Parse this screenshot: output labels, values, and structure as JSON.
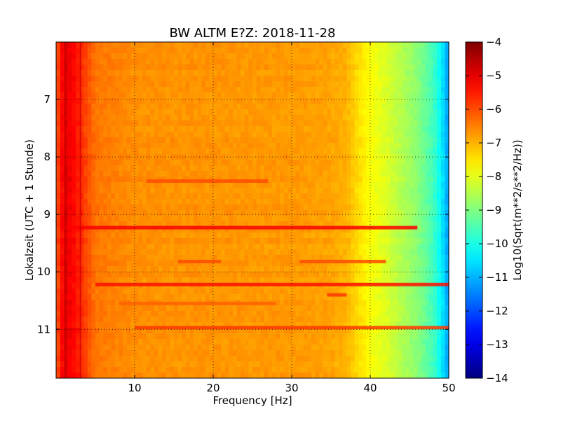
{
  "chart_data": {
    "type": "heatmap",
    "title": "BW ALTM E?Z: 2018-11-28",
    "xlabel": "Frequency [Hz]",
    "ylabel": "Lokalzeit (UTC + 1 Stunde)",
    "xlim": [
      0,
      50
    ],
    "ylim": [
      11.85,
      6.0
    ],
    "y_axis_inverted": true,
    "x_ticks": [
      10,
      20,
      30,
      40,
      50
    ],
    "y_ticks": [
      7,
      8,
      9,
      10,
      11
    ],
    "grid": true,
    "colorbar": {
      "label": "Log10(Sqrt(m**2/s**2/Hz))",
      "range": [
        -14,
        -4
      ],
      "ticks": [
        -4,
        -5,
        -6,
        -7,
        -8,
        -9,
        -10,
        -11,
        -12,
        -13,
        -14
      ],
      "colormap": "jet"
    },
    "spectral_profile": {
      "frequency_hz": [
        0,
        1,
        2,
        3,
        5,
        8,
        10,
        15,
        20,
        25,
        30,
        35,
        37,
        38,
        40,
        42,
        44,
        46,
        48,
        49,
        49.7,
        50
      ],
      "level": [
        -6.2,
        -5.0,
        -5.2,
        -5.6,
        -6.4,
        -6.55,
        -6.65,
        -6.7,
        -6.7,
        -6.75,
        -6.75,
        -6.85,
        -7.0,
        -7.3,
        -7.8,
        -8.1,
        -8.5,
        -8.9,
        -9.6,
        -10.3,
        -11.0,
        -11.2
      ]
    },
    "bands": [
      {
        "time": 9.23,
        "f_start": 0.5,
        "f_end": 46.0,
        "level": -5.2
      },
      {
        "time": 10.22,
        "f_start": 5.0,
        "f_end": 50.0,
        "level": -5.4
      },
      {
        "time": 10.97,
        "f_start": 10.0,
        "f_end": 50.0,
        "level": -5.8
      },
      {
        "time": 9.82,
        "f_start": 15.5,
        "f_end": 21.0,
        "level": -6.0
      },
      {
        "time": 9.82,
        "f_start": 31.0,
        "f_end": 42.0,
        "level": -6.0
      },
      {
        "time": 8.42,
        "f_start": 11.5,
        "f_end": 27.0,
        "level": -6.0
      },
      {
        "time": 10.55,
        "f_start": 8.0,
        "f_end": 28.0,
        "level": -6.2
      },
      {
        "time": 10.4,
        "f_start": 34.5,
        "f_end": 37.0,
        "level": -5.8
      }
    ],
    "vertical_lines": [
      {
        "frequency_hz": 3.1,
        "level": -4.8
      },
      {
        "frequency_hz": 1.2,
        "level": -4.6
      }
    ]
  }
}
